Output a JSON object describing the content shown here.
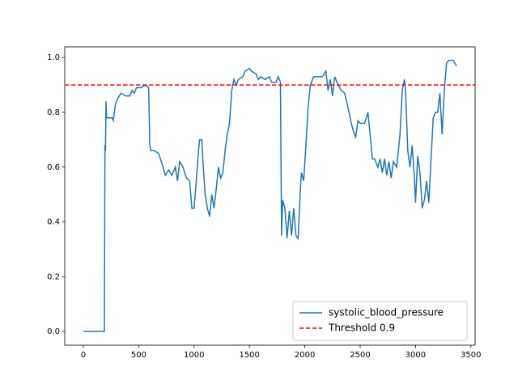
{
  "chart_data": {
    "type": "line",
    "x": [
      0,
      190,
      195,
      200,
      205,
      210,
      260,
      270,
      290,
      310,
      340,
      380,
      420,
      440,
      460,
      480,
      520,
      560,
      590,
      600,
      610,
      640,
      680,
      720,
      740,
      770,
      800,
      830,
      850,
      870,
      900,
      930,
      960,
      980,
      1000,
      1020,
      1040,
      1050,
      1070,
      1080,
      1100,
      1120,
      1140,
      1160,
      1180,
      1200,
      1220,
      1240,
      1260,
      1280,
      1300,
      1320,
      1340,
      1360,
      1380,
      1400,
      1440,
      1460,
      1500,
      1520,
      1560,
      1580,
      1600,
      1640,
      1680,
      1700,
      1740,
      1760,
      1780,
      1790,
      1800,
      1820,
      1840,
      1860,
      1880,
      1900,
      1920,
      1940,
      1960,
      1970,
      1990,
      2010,
      2030,
      2050,
      2080,
      2120,
      2160,
      2190,
      2210,
      2230,
      2250,
      2270,
      2300,
      2330,
      2360,
      2400,
      2420,
      2440,
      2460,
      2480,
      2500,
      2540,
      2570,
      2590,
      2610,
      2630,
      2660,
      2680,
      2700,
      2720,
      2740,
      2760,
      2780,
      2800,
      2830,
      2860,
      2880,
      2900,
      2910,
      2930,
      2950,
      2970,
      2990,
      3000,
      3020,
      3040,
      3060,
      3080,
      3100,
      3120,
      3140,
      3160,
      3180,
      3200,
      3220,
      3240,
      3260,
      3280,
      3300,
      3340,
      3370
    ],
    "series": [
      {
        "name": "systolic_blood_pressure",
        "color": "#1f77b4",
        "values": [
          0,
          0,
          0.68,
          0.66,
          0.84,
          0.78,
          0.78,
          0.77,
          0.83,
          0.85,
          0.87,
          0.86,
          0.86,
          0.88,
          0.87,
          0.89,
          0.89,
          0.9,
          0.89,
          0.68,
          0.66,
          0.66,
          0.65,
          0.6,
          0.57,
          0.59,
          0.57,
          0.6,
          0.55,
          0.62,
          0.6,
          0.56,
          0.55,
          0.45,
          0.45,
          0.55,
          0.66,
          0.7,
          0.7,
          0.62,
          0.5,
          0.45,
          0.42,
          0.5,
          0.45,
          0.52,
          0.6,
          0.56,
          0.58,
          0.66,
          0.72,
          0.76,
          0.88,
          0.92,
          0.9,
          0.92,
          0.93,
          0.95,
          0.96,
          0.95,
          0.94,
          0.92,
          0.93,
          0.92,
          0.93,
          0.91,
          0.91,
          0.93,
          0.91,
          0.35,
          0.48,
          0.45,
          0.34,
          0.44,
          0.35,
          0.45,
          0.35,
          0.34,
          0.52,
          0.58,
          0.55,
          0.68,
          0.82,
          0.9,
          0.93,
          0.93,
          0.93,
          0.95,
          0.88,
          0.92,
          0.86,
          0.93,
          0.9,
          0.88,
          0.87,
          0.8,
          0.76,
          0.73,
          0.71,
          0.77,
          0.76,
          0.76,
          0.8,
          0.72,
          0.63,
          0.63,
          0.6,
          0.63,
          0.58,
          0.63,
          0.57,
          0.62,
          0.56,
          0.62,
          0.6,
          0.72,
          0.88,
          0.92,
          0.88,
          0.66,
          0.6,
          0.68,
          0.56,
          0.47,
          0.64,
          0.58,
          0.45,
          0.48,
          0.55,
          0.47,
          0.63,
          0.78,
          0.8,
          0.8,
          0.87,
          0.72,
          0.88,
          0.98,
          0.99,
          0.99,
          0.97
        ]
      }
    ],
    "hlines": [
      {
        "name": "Threshold 0.9",
        "value": 0.9,
        "color": "#ff0000"
      }
    ],
    "xlim": [
      -168,
      3538
    ],
    "ylim": [
      -0.05,
      1.039
    ],
    "xticks": [
      0,
      500,
      1000,
      1500,
      2000,
      2500,
      3000,
      3500
    ],
    "yticks": [
      {
        "value": 0,
        "label": "0.0"
      },
      0.2,
      0.4,
      0.6,
      0.8,
      {
        "value": 1,
        "label": "1.0"
      }
    ],
    "legend": "lower right"
  }
}
